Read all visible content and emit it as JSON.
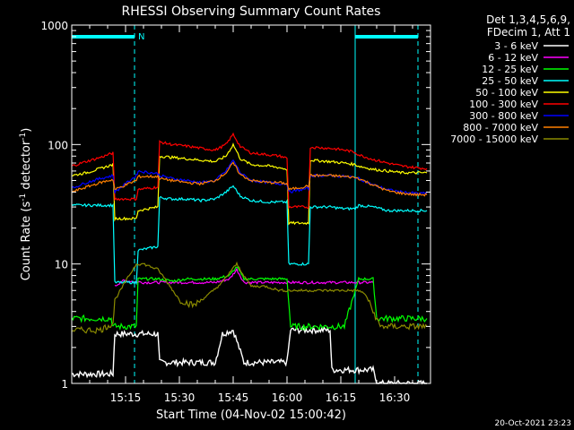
{
  "chart_data": {
    "type": "line",
    "title": "RHESSI Observing Summary Count Rates",
    "xlabel": "Start Time (04-Nov-02 15:00:42)",
    "ylabel": "Count Rate (s",
    "ylabel_sup1": "-1",
    "ylabel_mid": " detector",
    "ylabel_sup2": "-1",
    "ylabel_end": ")",
    "y_scale": "log",
    "ylim": [
      1,
      1000
    ],
    "xlim_minutes": [
      0,
      100
    ],
    "x_ticks": [
      {
        "minute": 15,
        "label": "15:15"
      },
      {
        "minute": 30,
        "label": "15:30"
      },
      {
        "minute": 45,
        "label": "15:45"
      },
      {
        "minute": 60,
        "label": "16:00"
      },
      {
        "minute": 75,
        "label": "16:15"
      },
      {
        "minute": 90,
        "label": "16:30"
      }
    ],
    "y_ticks": [
      {
        "value": 1,
        "label": "1"
      },
      {
        "value": 10,
        "label": "10"
      },
      {
        "value": 100,
        "label": "100"
      },
      {
        "value": 1000,
        "label": "1000"
      }
    ],
    "legend_header": [
      "Det 1,3,4,5,6,9,",
      "FDecim 1, Att 1"
    ],
    "night_flag_label": "N",
    "timestamp": "20-Oct-2021 23:23",
    "night_bars": [
      [
        0,
        17.5
      ],
      [
        79,
        96.5
      ]
    ],
    "vertical_lines": [
      {
        "minute": 0,
        "style": "solid"
      },
      {
        "minute": 17.5,
        "style": "dashed"
      },
      {
        "minute": 79,
        "style": "solid"
      },
      {
        "minute": 96.5,
        "style": "dashed"
      }
    ],
    "series": [
      {
        "name": "3 - 6 keV",
        "color": "#ffffff",
        "x": [
          0,
          11.5,
          12,
          24,
          24.5,
          40,
          42,
          45,
          48,
          60,
          61,
          72,
          72.5,
          84,
          85,
          99
        ],
        "y": [
          1.2,
          1.2,
          2.6,
          2.6,
          1.5,
          1.5,
          2.6,
          2.8,
          1.5,
          1.5,
          2.8,
          2.8,
          1.3,
          1.3,
          1.0,
          1.0
        ]
      },
      {
        "name": "6 - 12 keV",
        "color": "#ff00ff",
        "x": [
          12,
          14,
          16,
          20,
          24,
          28,
          32,
          36,
          40,
          44,
          46,
          48,
          52,
          56,
          60,
          64,
          68,
          72,
          76,
          80,
          84
        ],
        "y": [
          6.5,
          7.2,
          7.2,
          7.0,
          7.0,
          7.0,
          7.0,
          7.0,
          7.0,
          7.5,
          9.0,
          7.0,
          7.0,
          7.0,
          7.0,
          7.0,
          7.0,
          7.0,
          7.0,
          7.0,
          7.0
        ]
      },
      {
        "name": "12 - 25 keV",
        "color": "#00ff00",
        "x": [
          0,
          11,
          11.5,
          18,
          18.5,
          24,
          28,
          32,
          36,
          40,
          44,
          46,
          48,
          52,
          56,
          60,
          61,
          76,
          80,
          84,
          85,
          99
        ],
        "y": [
          3.5,
          3.5,
          3.0,
          3.0,
          7.5,
          7.5,
          7.2,
          7.5,
          7.5,
          7.5,
          8.0,
          9.5,
          7.5,
          7.5,
          7.5,
          7.5,
          3.0,
          3.0,
          7.5,
          7.5,
          3.5,
          3.5
        ]
      },
      {
        "name": "25 - 50 keV",
        "color": "#00ffff",
        "x": [
          0,
          4,
          8,
          11.5,
          12,
          18,
          18.5,
          24,
          24.5,
          28,
          32,
          36,
          40,
          43,
          45,
          47,
          50,
          55,
          58,
          60,
          60.5,
          66,
          66.5,
          72,
          76,
          79,
          80,
          84,
          88,
          92,
          96,
          99
        ],
        "y": [
          31,
          31,
          31,
          31,
          7.0,
          7.0,
          13,
          14,
          36,
          35,
          35,
          34,
          35,
          40,
          45,
          37,
          34,
          33,
          33,
          33,
          10,
          10,
          30,
          30,
          29,
          29,
          31,
          30,
          28,
          28,
          28,
          28
        ]
      },
      {
        "name": "50 - 100 keV",
        "color": "#ffff00",
        "x": [
          0,
          4,
          8,
          11.5,
          12,
          18,
          18.5,
          24,
          24.5,
          28,
          32,
          36,
          40,
          43,
          45,
          47,
          50,
          55,
          58,
          60,
          60.5,
          66,
          66.5,
          72,
          76,
          79,
          80,
          84,
          88,
          92,
          96,
          99
        ],
        "y": [
          55,
          58,
          63,
          68,
          24,
          24,
          28,
          30,
          80,
          78,
          76,
          74,
          72,
          80,
          100,
          76,
          68,
          66,
          64,
          62,
          22,
          22,
          74,
          72,
          70,
          68,
          66,
          62,
          60,
          58,
          58,
          58
        ]
      },
      {
        "name": "100 - 300 keV",
        "color": "#ff0000",
        "x": [
          0,
          4,
          8,
          11.5,
          12,
          18,
          18.5,
          24,
          24.5,
          28,
          32,
          36,
          40,
          43,
          45,
          47,
          50,
          55,
          58,
          60,
          60.5,
          66,
          66.5,
          72,
          76,
          79,
          80,
          84,
          88,
          92,
          96,
          99
        ],
        "y": [
          66,
          72,
          78,
          85,
          35,
          35,
          42,
          44,
          105,
          100,
          97,
          93,
          90,
          100,
          122,
          96,
          85,
          82,
          80,
          77,
          30,
          30,
          95,
          93,
          90,
          86,
          82,
          75,
          70,
          66,
          64,
          63
        ]
      },
      {
        "name": "300 - 800 keV",
        "color": "#0000ff",
        "x": [
          0,
          4,
          8,
          11.5,
          12,
          18,
          18.5,
          24,
          24.5,
          28,
          32,
          36,
          40,
          43,
          45,
          47,
          50,
          55,
          58,
          60,
          60.5,
          66,
          66.5,
          72,
          76,
          79,
          80,
          84,
          88,
          92,
          96,
          99
        ],
        "y": [
          43,
          48,
          52,
          55,
          40,
          55,
          60,
          57,
          55,
          52,
          50,
          48,
          50,
          60,
          74,
          58,
          50,
          48,
          47,
          47,
          40,
          43,
          55,
          55,
          54,
          53,
          52,
          46,
          42,
          40,
          39,
          39
        ]
      },
      {
        "name": "800 - 7000 keV",
        "color": "#ff8000",
        "x": [
          0,
          4,
          8,
          11.5,
          12,
          18,
          18.5,
          24,
          24.5,
          28,
          32,
          36,
          40,
          43,
          45,
          47,
          50,
          55,
          58,
          60,
          60.5,
          66,
          66.5,
          72,
          76,
          79,
          80,
          84,
          88,
          92,
          96,
          99
        ],
        "y": [
          40,
          44,
          48,
          51,
          42,
          50,
          54,
          54,
          52,
          50,
          48,
          47,
          50,
          58,
          70,
          56,
          50,
          48,
          48,
          47,
          42,
          45,
          55,
          55,
          54,
          53,
          52,
          46,
          41,
          39,
          38,
          38
        ]
      },
      {
        "name": "7000 - 15000 keV",
        "color": "#8b8b00",
        "x": [
          0,
          4,
          8,
          11.5,
          12,
          16,
          18,
          20,
          24,
          26,
          30,
          34,
          38,
          42,
          44,
          46,
          48,
          50,
          54,
          58,
          60,
          64,
          68,
          72,
          76,
          80,
          82,
          84,
          86,
          90,
          94,
          99
        ],
        "y": [
          2.8,
          2.8,
          2.8,
          3.2,
          5.0,
          8.0,
          10.0,
          10.0,
          9.0,
          7.5,
          5.0,
          4.5,
          5.5,
          7.0,
          8.5,
          10.0,
          8.0,
          6.5,
          6.5,
          6.0,
          6.0,
          6.0,
          6.0,
          6.0,
          6.0,
          6.0,
          5.5,
          4.0,
          3.0,
          3.0,
          3.0,
          3.0
        ]
      }
    ]
  }
}
